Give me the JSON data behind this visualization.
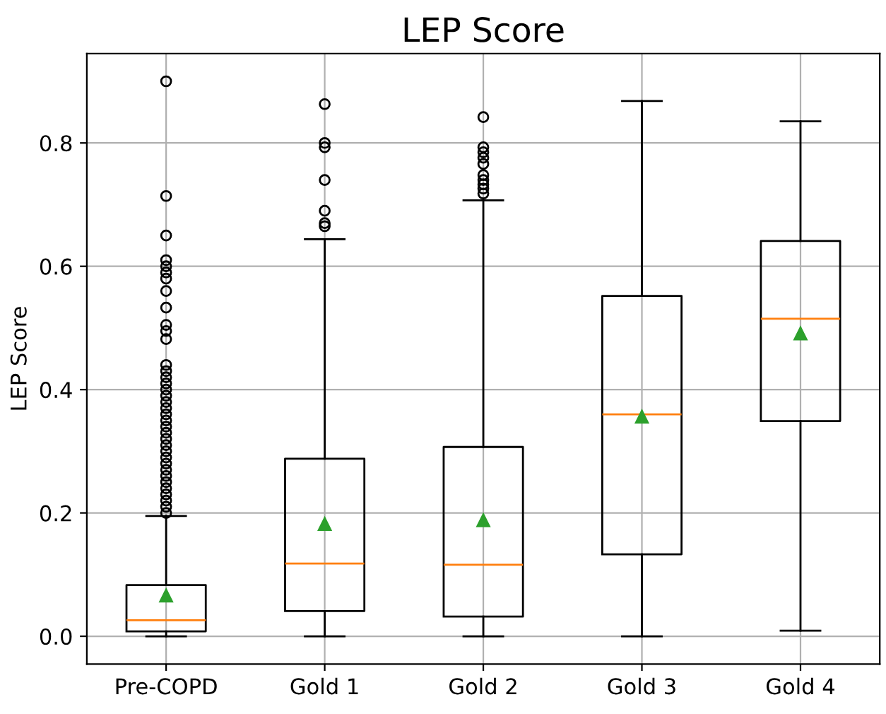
{
  "chart_data": {
    "type": "box",
    "title": "LEP Score",
    "ylabel": "LEP Score",
    "categories": [
      "Pre-COPD",
      "Gold 1",
      "Gold 2",
      "Gold 3",
      "Gold 4"
    ],
    "boxes": [
      {
        "low": 0.0,
        "q1": 0.008,
        "median": 0.026,
        "q3": 0.083,
        "high": 0.195,
        "mean": 0.066,
        "outliers": [
          0.9,
          0.714,
          0.65,
          0.61,
          0.6,
          0.59,
          0.58,
          0.56,
          0.533,
          0.505,
          0.495,
          0.482,
          0.44,
          0.43,
          0.42,
          0.41,
          0.4,
          0.39,
          0.38,
          0.37,
          0.36,
          0.35,
          0.34,
          0.33,
          0.32,
          0.31,
          0.3,
          0.29,
          0.28,
          0.27,
          0.26,
          0.25,
          0.24,
          0.23,
          0.22,
          0.21,
          0.2
        ]
      },
      {
        "low": 0.0,
        "q1": 0.041,
        "median": 0.118,
        "q3": 0.288,
        "high": 0.644,
        "mean": 0.182,
        "outliers": [
          0.863,
          0.8,
          0.793,
          0.74,
          0.69,
          0.67,
          0.665
        ]
      },
      {
        "low": 0.0,
        "q1": 0.032,
        "median": 0.116,
        "q3": 0.307,
        "high": 0.707,
        "mean": 0.188,
        "outliers": [
          0.842,
          0.793,
          0.785,
          0.776,
          0.766,
          0.748,
          0.74,
          0.733,
          0.726,
          0.718
        ]
      },
      {
        "low": 0.0,
        "q1": 0.133,
        "median": 0.36,
        "q3": 0.552,
        "high": 0.868,
        "mean": 0.356
      },
      {
        "low": 0.009,
        "q1": 0.349,
        "median": 0.515,
        "q3": 0.641,
        "high": 0.835,
        "mean": 0.491
      }
    ],
    "ylim": [
      -0.045,
      0.945
    ],
    "yticks": [
      {
        "value": 0.0,
        "label": "0.0"
      },
      0.2,
      0.4,
      0.6,
      0.8
    ],
    "grid": true
  }
}
